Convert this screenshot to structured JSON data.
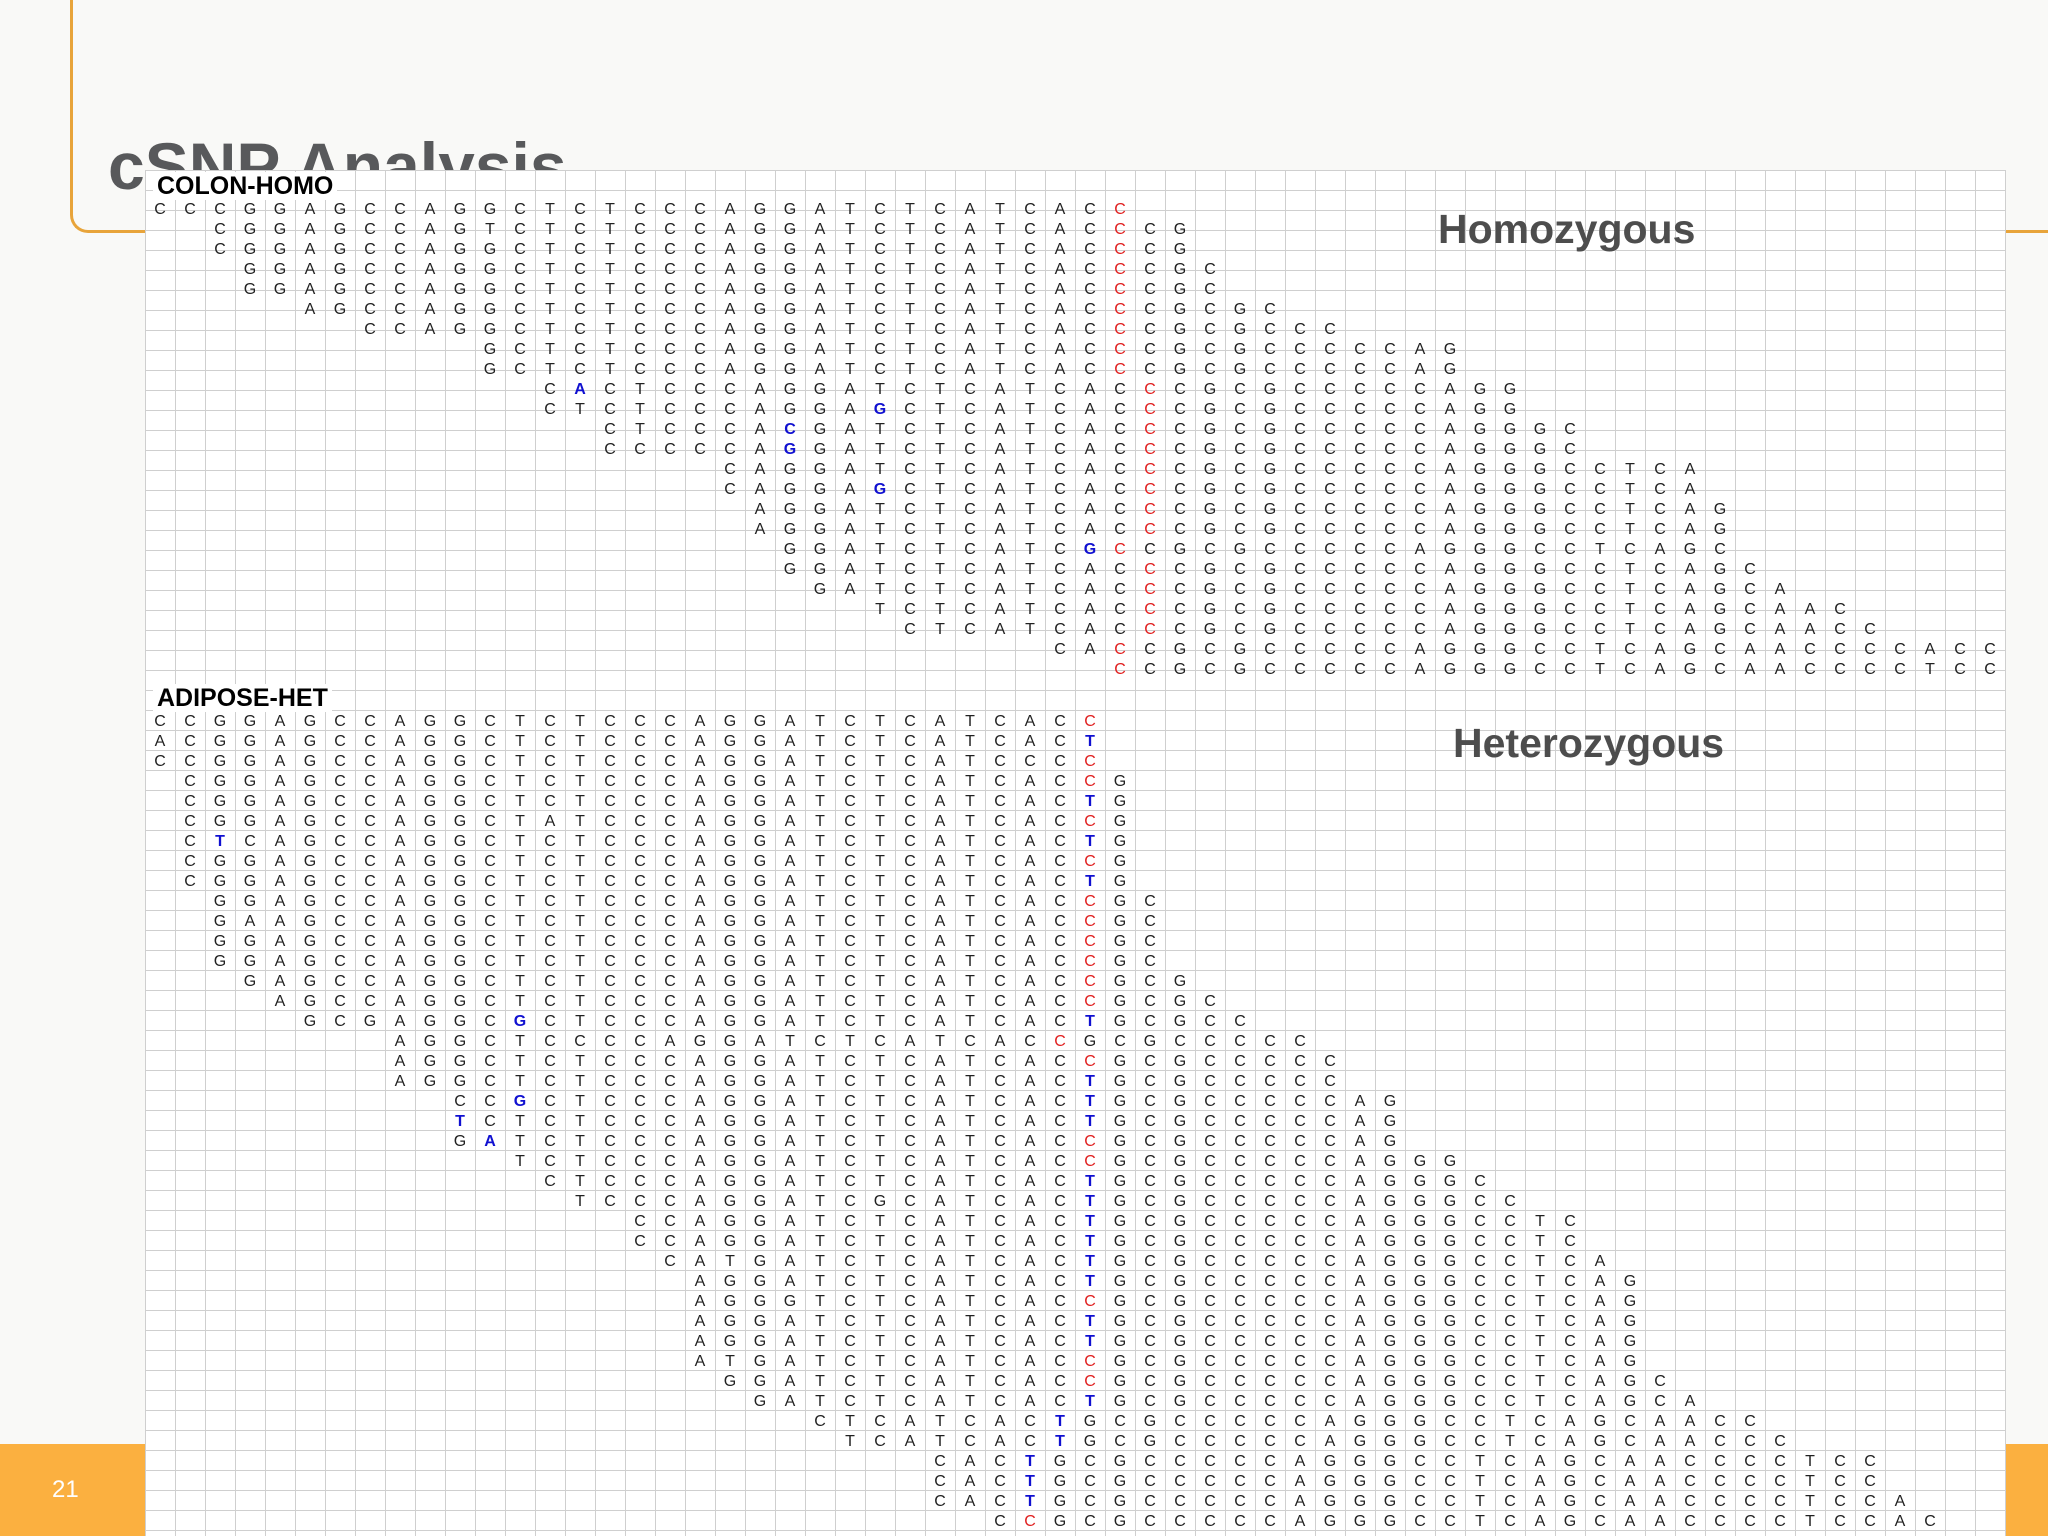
{
  "slide": {
    "title": "cSNP Analysis",
    "page_number": "21"
  },
  "homozygous_panel": {
    "label": "COLON-HOMO",
    "annotation": "Homozygous",
    "rows": [
      [
        "CCCGGAGCCAGGCTCTCCCAGGATCTCATCAC*C*",
        ""
      ],
      [
        "  CGGAGCCAGTCTCTCCCAGGATCTCATCAC*C*CG",
        ""
      ],
      [
        "  CGGAGCCAGGCTCTCCCAGGATCTCATCAC*C*CG",
        ""
      ],
      [
        "   GGAGCCAGGCTCTCCCAGGATCTCATCAC*C*CGC",
        ""
      ],
      [
        "   GGAGCCAGGCTCTCCCAGGATCTCATCAC*C*CGC",
        ""
      ],
      [
        "     AGCCAGGCTCTCCCAGGATCTCATCAC*C*CGCGC",
        ""
      ],
      [
        "       CCAGGCTCTCCCAGGATCTCATCAC*C*CGCGCCC",
        ""
      ],
      [
        "           GCTCTCCCAGGATCTCATCAC*C*CGCGCCCCCAG",
        ""
      ],
      [
        "           GCTCTCCCAGGATCTCATCAC*C*CGCGCCCCCAG",
        ""
      ],
      [
        "             C~A~CTCCCAGGATCTCATCAC*C*CGCGCCCCCAGG",
        ""
      ],
      [
        "             CTCTCCCAGGA~G~CTCATCAC*C*CGCGCCCCCAGG",
        ""
      ],
      [
        "               CTCCCA~C~GATCTCATCAC*C*CGCGCCCCCAGGGC",
        ""
      ],
      [
        "               CCCCCA~G~GATCTCATCAC*C*CGCGCCCCCAGGGC",
        ""
      ],
      [
        "                   CAGGATCTCATCAC*C*CGCGCCCCCAGGGCCTCA",
        ""
      ],
      [
        "                   CAGGA~G~CTCATCAC*C*CGCGCCCCCAGGGCCTCA",
        ""
      ],
      [
        "                    AGGATCTCATCAC*C*CGCGCCCCCAGGGCCTCAG",
        ""
      ],
      [
        "                    AGGATCTCATCAC*C*CGCGCCCCCAGGGCCTCAG",
        ""
      ],
      [
        "                     GGATCTCATC~G~*C*CGCGCCCCCAGGGCCTCAGC",
        ""
      ],
      [
        "                     GGATCTCATCAC*C*CGCGCCCCCAGGGCCTCAGC",
        ""
      ],
      [
        "                      GATCTCATCAC*C*CGCGCCCCCAGGGCCTCAGCA",
        ""
      ],
      [
        "                        TCTCATCAC*C*CGCGCCCCCAGGGCCTCAGCAAC",
        ""
      ],
      [
        "                         CTCATCAC*C*CGCGCCCCCAGGGCCTCAGCAACC",
        ""
      ],
      [
        "                              CA*C*CGCGCCCCCAGGGCCTCAGCAACCCCACC",
        ""
      ],
      [
        "                                *C*CGCGCCCCCAGGGCCTCAGCAACCCCTCCAC",
        ""
      ]
    ]
  },
  "heterozygous_panel": {
    "label": "ADIPOSE-HET",
    "annotation": "Heterozygous",
    "rows": [
      [
        "CCGGAGCCAGGCTCTCCCAGGATCTCATCAC*C*",
        ""
      ],
      [
        "ACGGAGCCAGGCTCTCCCAGGATCTCATCAC~T~",
        ""
      ],
      [
        "CCGGAGCCAGGCTCTCCCAGGATCTCATCCC*C*",
        ""
      ],
      [
        " CGGAGCCAGGCTCTCCCAGGATCTCATCAC*C*G",
        ""
      ],
      [
        " CGGAGCCAGGCTCTCCCAGGATCTCATCAC~T~G",
        ""
      ],
      [
        " CGGAGCCAGGCTATCCCAGGATCTCATCAC*C*G",
        ""
      ],
      [
        " C~T~CAGCCAGGCTCTCCCAGGATCTCATCAC~T~G",
        ""
      ],
      [
        " CGGAGCCAGGCTCTCCCAGGATCTCATCAC*C*G",
        ""
      ],
      [
        " CGGAGCCAGGCTCTCCCAGGATCTCATCAC~T~G",
        ""
      ],
      [
        "  GGAGCCAGGCTCTCCCAGGATCTCATCAC*C*GC",
        ""
      ],
      [
        "  GAAGCCAGGCTCTCCCAGGATCTCATCAC*C*GC",
        ""
      ],
      [
        "  GGAGCCAGGCTCTCCCAGGATCTCATCAC*C*GC",
        ""
      ],
      [
        "  GGAGCCAGGCTCTCCCAGGATCTCATCAC*C*GC",
        ""
      ],
      [
        "   GAGCCAGGCTCTCCCAGGATCTCATCAC*C*GCG",
        ""
      ],
      [
        "    AGCCAGGCTCTCCCAGGATCTCATCAC*C*GCGC",
        ""
      ],
      [
        "     GCGAGGC~G~CTCCCAGGATCTCATCAC~T~GCGCC",
        ""
      ],
      [
        "        AGGCTCCCCAGGATCTCATCAC*C*GCGCCCCC",
        ""
      ],
      [
        "        AGGCTCTCCCAGGATCTCATCAC*C*GCGCCCCC",
        ""
      ],
      [
        "        AGGCTCTCCCAGGATCTCATCAC~T~GCGCCCCC",
        ""
      ],
      [
        "          CC~G~CTCCCAGGATCTCATCAC~T~GCGCCCCCAG",
        ""
      ],
      [
        "          ~T~CTCTCCCAGGATCTCATCAC~T~GCGCCCCCAG",
        ""
      ],
      [
        "          G~A~TCTCCCAGGATCTCATCAC*C*GCGCCCCCAG",
        ""
      ],
      [
        "            TCTCCCAGGATCTCATCAC*C*GCGCCCCCAGGG",
        ""
      ],
      [
        "             CTCCCAGGATCTCATCAC~T~GCGCCCCCAGGGC",
        ""
      ],
      [
        "              TCCCAGGATCGCATCAC~T~GCGCCCCCAGGGCC",
        ""
      ],
      [
        "                CCAGGATCTCATCAC~T~GCGCCCCCAGGGCCTC",
        ""
      ],
      [
        "                CCAGGATCTCATCAC~T~GCGCCCCCAGGGCCTC",
        ""
      ],
      [
        "                 CATGATCTCATCAC~T~GCGCCCCCAGGGCCTCA",
        ""
      ],
      [
        "                  AGGATCTCATCAC~T~GCGCCCCCAGGGCCTCAG",
        ""
      ],
      [
        "                  AGGGTCTCATCAC*C*GCGCCCCCAGGGCCTCAG",
        ""
      ],
      [
        "                  AGGATCTCATCAC~T~GCGCCCCCAGGGCCTCAG",
        ""
      ],
      [
        "                  AGGATCTCATCAC~T~GCGCCCCCAGGGCCTCAG",
        ""
      ],
      [
        "                  ATGATCTCATCAC*C*GCGCCCCCAGGGCCTCAG",
        ""
      ],
      [
        "                   GGATCTCATCAC*C*GCGCCCCCAGGGCCTCAGC",
        ""
      ],
      [
        "                    GATCTCATCAC~T~GCGCCCCCAGGGCCTCAGCA",
        ""
      ],
      [
        "                      CTCATCAC~T~GCGCCCCCAGGGCCTCAGCAACC",
        ""
      ],
      [
        "                       TCATCAC~T~GCGCCCCCAGGGCCTCAGCAACCC",
        ""
      ],
      [
        "                          CAC~T~GCGCCCCCAGGGCCTCAGCAACCCCTCC",
        ""
      ],
      [
        "                          CAC~T~GCGCCCCCAGGGCCTCAGCAACCCCTCC",
        ""
      ],
      [
        "                          CAC~T~GCGCCCCCAGGGCCTCAGCAACCCCTCCA",
        ""
      ],
      [
        "                            C*C*GCGCCCCCAGGGCCTCAGCAACCCCTCCAC",
        ""
      ]
    ]
  }
}
